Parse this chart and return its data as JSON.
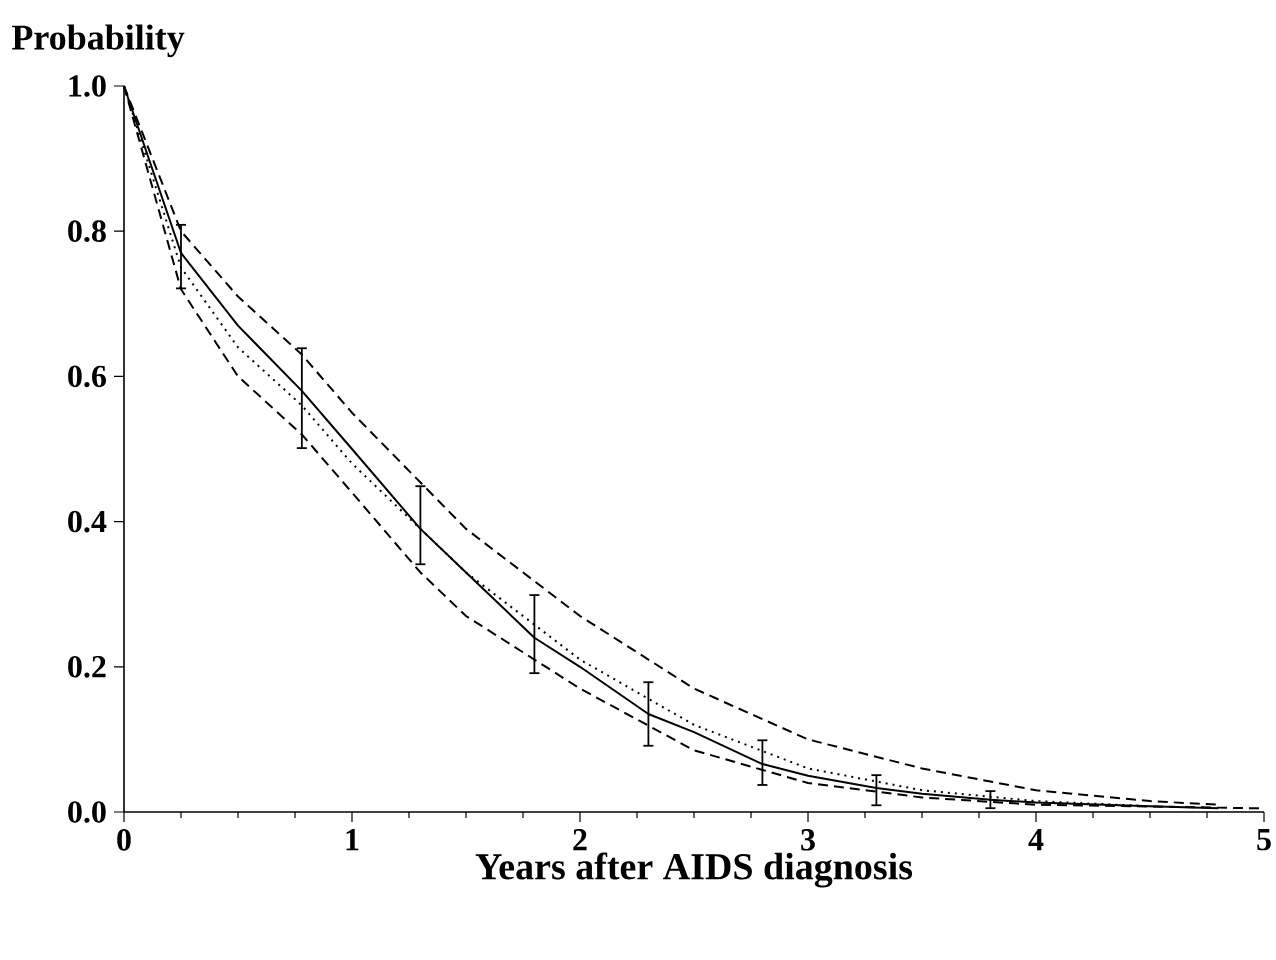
{
  "chart_data": {
    "type": "line",
    "xlabel": "Years after AIDS diagnosis",
    "ylabel": "Probability",
    "xlim": [
      0,
      5
    ],
    "ylim": [
      0,
      1.0
    ],
    "xticks": [
      0,
      1,
      2,
      3,
      4,
      5
    ],
    "yticks": [
      {
        "value": 0,
        "label": "0.0"
      },
      {
        "value": 0.2,
        "label": "0.2"
      },
      {
        "value": 0.4,
        "label": "0.4"
      },
      {
        "value": 0.6,
        "label": "0.6"
      },
      {
        "value": 0.8,
        "label": "0.8"
      },
      {
        "value": 1.0,
        "label": "1.0"
      }
    ],
    "marker": "none",
    "series": [
      {
        "color": "#000000",
        "line_style": "solid",
        "x": [
          0,
          0.25,
          0.5,
          0.78,
          1.0,
          1.3,
          1.5,
          1.8,
          2.0,
          2.3,
          2.5,
          2.8,
          3.0,
          3.3,
          3.5,
          3.8,
          4.0,
          4.5,
          4.8
        ],
        "values": [
          1.0,
          0.77,
          0.67,
          0.58,
          0.5,
          0.39,
          0.33,
          0.24,
          0.2,
          0.135,
          0.11,
          0.066,
          0.05,
          0.033,
          0.025,
          0.017,
          0.013,
          0.008,
          0.005
        ],
        "errors": [
          null,
          [
            0.72,
            0.81
          ],
          null,
          [
            0.5,
            0.64
          ],
          null,
          [
            0.34,
            0.45
          ],
          null,
          [
            0.19,
            0.3
          ],
          null,
          [
            0.09,
            0.18
          ],
          null,
          [
            0.036,
            0.1
          ],
          null,
          [
            0.008,
            0.052
          ],
          null,
          [
            0.004,
            0.03
          ],
          null,
          null,
          null
        ]
      },
      {
        "color": "#000000",
        "line_style": "dashed",
        "x": [
          0,
          0.25,
          0.5,
          0.78,
          1.0,
          1.5,
          2.0,
          2.5,
          3.0,
          3.5,
          4.0,
          4.5,
          4.8
        ],
        "values": [
          1.0,
          0.8,
          0.71,
          0.63,
          0.55,
          0.39,
          0.27,
          0.17,
          0.1,
          0.06,
          0.03,
          0.015,
          0.01
        ]
      },
      {
        "color": "#000000",
        "line_style": "dashed",
        "x": [
          0,
          0.25,
          0.5,
          0.78,
          1.0,
          1.3,
          1.5,
          2.0,
          2.5,
          3.0,
          3.5,
          4.0,
          5.0
        ],
        "values": [
          1.0,
          0.72,
          0.6,
          0.52,
          0.44,
          0.33,
          0.27,
          0.17,
          0.085,
          0.04,
          0.02,
          0.01,
          0.005
        ]
      },
      {
        "color": "#000000",
        "line_style": "dotted",
        "x": [
          0,
          0.25,
          0.5,
          0.78,
          1.0,
          1.3,
          1.5,
          2.0,
          2.5,
          3.0,
          3.5,
          4.0,
          4.5
        ],
        "values": [
          1.0,
          0.75,
          0.64,
          0.56,
          0.48,
          0.39,
          0.33,
          0.21,
          0.12,
          0.06,
          0.03,
          0.015,
          0.008
        ]
      }
    ]
  }
}
